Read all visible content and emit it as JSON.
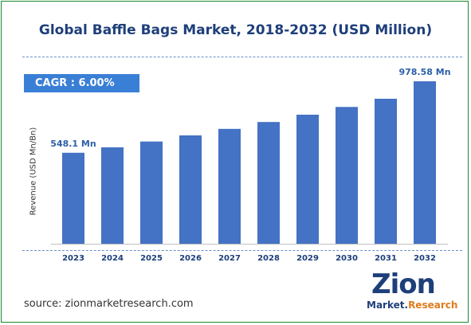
{
  "title": "Global Baffle Bags Market, 2018-2032 (USD Million)",
  "cagr": "CAGR :  6.00%",
  "source": "source: zionmarketresearch.com",
  "logo": {
    "top": "Zion",
    "bottom_a": "Market.",
    "bottom_b": "Research"
  },
  "colors": {
    "bar": "#4472c4",
    "title": "#1e3f7a",
    "cagr_bg": "#3a7fd6",
    "accent": "#e07b1a"
  },
  "chart_data": {
    "type": "bar",
    "title": "Global Baffle Bags Market, 2018-2032 (USD Million)",
    "xlabel": "",
    "ylabel": "Revenue (USD Mn/Bn)",
    "categories": [
      "2023",
      "2024",
      "2025",
      "2026",
      "2027",
      "2028",
      "2029",
      "2030",
      "2031",
      "2032"
    ],
    "values": [
      548.1,
      581.0,
      615.8,
      652.8,
      691.9,
      733.4,
      777.4,
      824.1,
      873.5,
      978.58
    ],
    "data_labels": [
      {
        "index": 0,
        "text": "548.1 Mn"
      },
      {
        "index": 9,
        "text": "978.58 Mn"
      }
    ],
    "ylim": [
      0,
      1000
    ],
    "grid": false,
    "legend": "none"
  }
}
